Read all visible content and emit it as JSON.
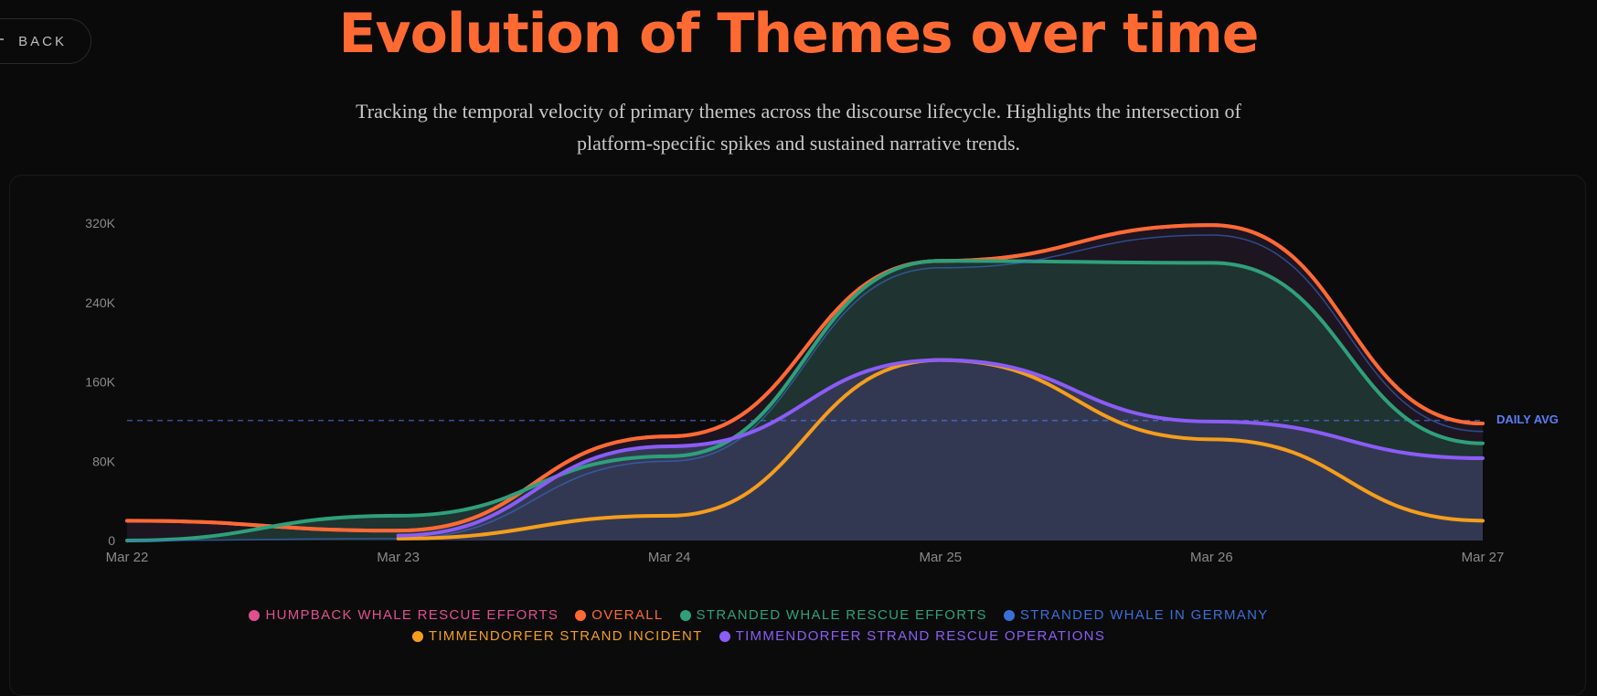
{
  "header": {
    "back_label": "BACK",
    "title": "Evolution of Themes over time",
    "subtitle": "Tracking the temporal velocity of primary themes across the discourse lifecycle. Highlights the intersection of platform-specific spikes and sustained narrative trends."
  },
  "chart_data": {
    "type": "area",
    "x": [
      "Mar 22",
      "Mar 23",
      "Mar 24",
      "Mar 25",
      "Mar 26",
      "Mar 27"
    ],
    "ylim": [
      0,
      320000
    ],
    "yticks": [
      {
        "value": 0,
        "label": "0"
      },
      {
        "value": 80000,
        "label": "80K"
      },
      {
        "value": 160000,
        "label": "160K"
      },
      {
        "value": 240000,
        "label": "240K"
      },
      {
        "value": 320000,
        "label": "320K"
      }
    ],
    "grid": false,
    "legend_position": "bottom",
    "series": [
      {
        "name": "HUMPBACK WHALE RESCUE EFFORTS",
        "color": "#e0508f",
        "values": [
          20000,
          10000,
          105000,
          282000,
          318000,
          118000
        ],
        "fill": false
      },
      {
        "name": "OVERALL",
        "color": "#ff6a33",
        "values": [
          20000,
          10000,
          105000,
          282000,
          318000,
          118000
        ],
        "fill": true,
        "fill_color": "#1d1520"
      },
      {
        "name": "STRANDED WHALE RESCUE EFFORTS",
        "color": "#2ea07a",
        "values": [
          0,
          25000,
          85000,
          282000,
          280000,
          98000
        ],
        "fill": true,
        "fill_color": "#1f3330"
      },
      {
        "name": "STRANDED WHALE IN GERMANY",
        "color": "#3b6fd8",
        "values": [
          0,
          2000,
          80000,
          275000,
          308000,
          110000
        ],
        "fill": false
      },
      {
        "name": "TIMMENDORFER STRAND INCIDENT",
        "color": "#f59e1c",
        "values": [
          null,
          2000,
          25000,
          182000,
          102000,
          20000
        ],
        "fill": true,
        "fill_color": "#544744"
      },
      {
        "name": "TIMMENDORFER STRAND RESCUE OPERATIONS",
        "color": "#8b5cf6",
        "values": [
          null,
          5000,
          95000,
          182000,
          120000,
          83000
        ],
        "fill": true,
        "fill_color": "#333852"
      }
    ],
    "annotations": [
      {
        "label": "DAILY AVG",
        "value": 121000,
        "style": "dashed",
        "color": "#5b7ef5"
      }
    ]
  }
}
